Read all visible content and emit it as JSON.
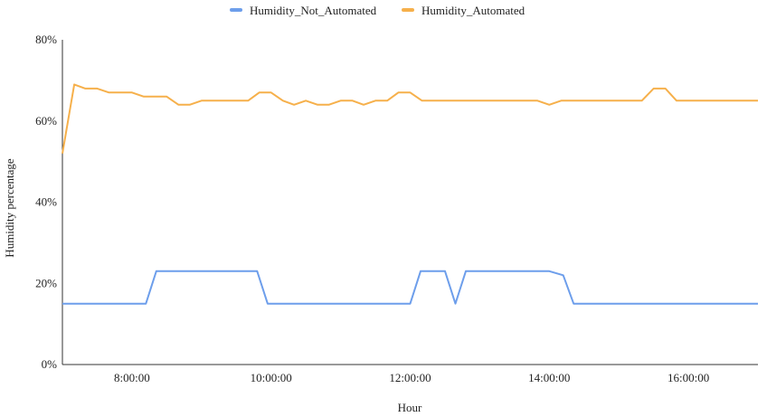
{
  "chart_data": {
    "type": "line",
    "xlabel": "Hour",
    "ylabel": "Humidity percentage",
    "x_range_hours": [
      7,
      17
    ],
    "ylim": [
      0,
      80
    ],
    "y_ticks": [
      "0%",
      "20%",
      "40%",
      "60%",
      "80%"
    ],
    "x_ticks": [
      "8:00:00",
      "10:00:00",
      "12:00:00",
      "14:00:00",
      "16:00:00"
    ],
    "x_tick_values": [
      8,
      10,
      12,
      14,
      16
    ],
    "y_tick_values": [
      0,
      20,
      40,
      60,
      80
    ],
    "legend_position": "top",
    "grid": false,
    "series": [
      {
        "name": "Humidity_Not_Automated",
        "color": "#6d9eeb",
        "x": [
          7.0,
          8.2,
          8.35,
          9.8,
          9.95,
          11.0,
          12.0,
          12.15,
          12.5,
          12.65,
          12.8,
          14.0,
          14.2,
          14.35,
          17.0
        ],
        "y": [
          15,
          15,
          23,
          23,
          15,
          15,
          15,
          23,
          23,
          15,
          23,
          23,
          22,
          15,
          15
        ]
      },
      {
        "name": "Humidity_Automated",
        "color": "#f6b04b",
        "x": [
          7.0,
          7.17,
          7.33,
          7.5,
          7.67,
          7.83,
          8.0,
          8.17,
          8.33,
          8.5,
          8.67,
          8.83,
          9.0,
          9.17,
          9.33,
          9.5,
          9.67,
          9.83,
          10.0,
          10.17,
          10.33,
          10.5,
          10.67,
          10.83,
          11.0,
          11.17,
          11.33,
          11.5,
          11.67,
          11.83,
          12.0,
          12.17,
          12.33,
          12.5,
          12.67,
          12.83,
          13.0,
          13.17,
          13.33,
          13.5,
          13.67,
          13.83,
          14.0,
          14.17,
          14.33,
          14.5,
          14.67,
          14.83,
          15.0,
          15.17,
          15.33,
          15.5,
          15.67,
          15.83,
          16.0,
          16.17,
          16.33,
          16.5,
          16.67,
          16.83,
          17.0
        ],
        "y": [
          52,
          69,
          68,
          68,
          67,
          67,
          67,
          66,
          66,
          66,
          64,
          64,
          65,
          65,
          65,
          65,
          65,
          67,
          67,
          65,
          64,
          65,
          64,
          64,
          65,
          65,
          64,
          65,
          65,
          67,
          67,
          65,
          65,
          65,
          65,
          65,
          65,
          65,
          65,
          65,
          65,
          65,
          64,
          65,
          65,
          65,
          65,
          65,
          65,
          65,
          65,
          68,
          68,
          65,
          65,
          65,
          65,
          65,
          65,
          65,
          65
        ]
      }
    ]
  }
}
